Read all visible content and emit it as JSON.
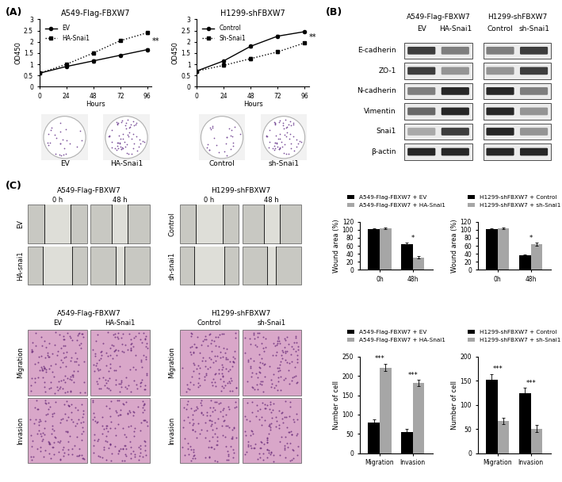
{
  "panel_labels": [
    "(A)",
    "(B)",
    "(C)"
  ],
  "chart_data": [
    {
      "type": "line",
      "title": "A549-Flag-FBXW7",
      "x_label": "Hours",
      "y_label": "OD450",
      "x": [
        0,
        24,
        48,
        72,
        96
      ],
      "xlim": [
        0,
        100
      ],
      "xticks": [
        0,
        24,
        48,
        72,
        96
      ],
      "ylim": [
        0,
        3
      ],
      "yticks": [
        0,
        0.5,
        1,
        1.5,
        2,
        2.5,
        3
      ],
      "legend": "upper left",
      "series": [
        {
          "name": "EV",
          "color": "#000000",
          "marker": "circle",
          "line_style": "solid",
          "values": [
            0.6,
            0.9,
            1.15,
            1.4,
            1.65
          ],
          "errors": [
            0.03,
            0.05,
            0.08,
            0.04,
            0.04
          ]
        },
        {
          "name": "HA-Snai1",
          "color": "#000000",
          "marker": "square",
          "line_style": "dotted",
          "values": [
            0.6,
            1.0,
            1.5,
            2.05,
            2.4
          ],
          "errors": [
            0.03,
            0.04,
            0.05,
            0.04,
            0.06
          ]
        }
      ],
      "annotations": [
        {
          "text": "**",
          "x": 96
        }
      ]
    },
    {
      "type": "line",
      "title": "H1299-shFBXW7",
      "x_label": "Hours",
      "y_label": "OD450",
      "x": [
        0,
        24,
        48,
        72,
        96
      ],
      "xlim": [
        0,
        100
      ],
      "xticks": [
        0,
        24,
        48,
        72,
        96
      ],
      "ylim": [
        0,
        3
      ],
      "yticks": [
        0,
        0.5,
        1,
        1.5,
        2,
        2.5,
        3
      ],
      "legend": "upper left",
      "series": [
        {
          "name": "Control",
          "color": "#000000",
          "marker": "circle",
          "line_style": "solid",
          "values": [
            0.7,
            1.15,
            1.8,
            2.25,
            2.45
          ],
          "errors": [
            0.03,
            0.04,
            0.04,
            0.04,
            0.04
          ]
        },
        {
          "name": "Sh-Snai1",
          "color": "#000000",
          "marker": "square",
          "line_style": "dotted",
          "values": [
            0.7,
            0.95,
            1.25,
            1.55,
            1.95
          ],
          "errors": [
            0.03,
            0.04,
            0.06,
            0.04,
            0.04
          ]
        }
      ],
      "annotations": [
        {
          "text": "**",
          "x": 96
        }
      ]
    },
    {
      "type": "bar",
      "y_label": "Wound area (%)",
      "categories": [
        "0h",
        "48h"
      ],
      "ylim": [
        0,
        120
      ],
      "yticks": [
        0,
        20,
        40,
        60,
        80,
        100,
        120
      ],
      "legend": "upper center",
      "series": [
        {
          "name": "A549-Flag-FBXW7 + EV",
          "color": "#000000",
          "values": [
            102,
            65
          ],
          "errors": [
            2,
            3
          ]
        },
        {
          "name": "A549-Flag-FBXW7 + HA-Snai1",
          "color": "#a6a6a6",
          "values": [
            103,
            31
          ],
          "errors": [
            2,
            3
          ]
        }
      ],
      "annotations": [
        {
          "text": "*",
          "category": "48h"
        }
      ]
    },
    {
      "type": "bar",
      "y_label": "Wound area (%)",
      "categories": [
        "0h",
        "48h"
      ],
      "ylim": [
        0,
        120
      ],
      "yticks": [
        0,
        20,
        40,
        60,
        80,
        100,
        120
      ],
      "legend": "upper center",
      "series": [
        {
          "name": "H1299-shFBXW7 + Control",
          "color": "#000000",
          "values": [
            101,
            36
          ],
          "errors": [
            2,
            3
          ]
        },
        {
          "name": "H1299-shFBXW7 + sh-Snai1",
          "color": "#a6a6a6",
          "values": [
            104,
            64
          ],
          "errors": [
            2,
            4
          ]
        }
      ],
      "annotations": [
        {
          "text": "*",
          "category": "48h"
        }
      ]
    },
    {
      "type": "bar",
      "y_label": "Number of cell",
      "categories": [
        "Migration",
        "Invasion"
      ],
      "ylim": [
        0,
        250
      ],
      "yticks": [
        0,
        50,
        100,
        150,
        200,
        250
      ],
      "legend": "upper center",
      "series": [
        {
          "name": "A549-Flag-FBXW7 + EV",
          "color": "#000000",
          "values": [
            80,
            55
          ],
          "errors": [
            7,
            8
          ]
        },
        {
          "name": "A549-Flag-FBXW7 + HA-Snai1",
          "color": "#a6a6a6",
          "values": [
            222,
            182
          ],
          "errors": [
            10,
            8
          ]
        }
      ],
      "annotations": [
        {
          "text": "***",
          "category": "Migration"
        },
        {
          "text": "***",
          "category": "Invasion"
        }
      ]
    },
    {
      "type": "bar",
      "y_label": "Number of cell",
      "categories": [
        "Migration",
        "Invasion"
      ],
      "ylim": [
        0,
        200
      ],
      "yticks": [
        0,
        50,
        100,
        150,
        200
      ],
      "legend": "upper center",
      "series": [
        {
          "name": "H1299-shFBXW7 + Control",
          "color": "#000000",
          "values": [
            152,
            125
          ],
          "errors": [
            12,
            10
          ]
        },
        {
          "name": "H1299-shFBXW7 + sh-Snai1",
          "color": "#a6a6a6",
          "values": [
            67,
            51
          ],
          "errors": [
            7,
            8
          ]
        }
      ],
      "annotations": [
        {
          "text": "***",
          "category": "Migration"
        },
        {
          "text": "***",
          "category": "Invasion"
        }
      ]
    }
  ],
  "colony_images": [
    [
      "EV",
      "HA-Snai1"
    ],
    [
      "Control",
      "sh-Snai1"
    ]
  ],
  "western_blots": {
    "rows": [
      "E-cadherin",
      "ZO-1",
      "N-cadherin",
      "Vimentin",
      "Snai1",
      "β-actin"
    ],
    "blots": [
      {
        "title": "A549-Flag-FBXW7",
        "lanes": [
          "EV",
          "HA-Snai1"
        ],
        "intensities": [
          [
            0.8,
            0.5
          ],
          [
            0.8,
            0.4
          ],
          [
            0.5,
            0.9
          ],
          [
            0.6,
            0.9
          ],
          [
            0.3,
            0.8
          ],
          [
            0.9,
            0.9
          ]
        ]
      },
      {
        "title": "H1299-shFBXW7",
        "lanes": [
          "Control",
          "sh-Snai1"
        ],
        "intensities": [
          [
            0.5,
            0.8
          ],
          [
            0.4,
            0.8
          ],
          [
            0.9,
            0.5
          ],
          [
            0.9,
            0.4
          ],
          [
            0.9,
            0.4
          ],
          [
            0.9,
            0.9
          ]
        ]
      }
    ]
  },
  "wound_images": [
    {
      "title": "A549-Flag-FBXW7",
      "columns": [
        "0 h",
        "48 h"
      ],
      "rows": [
        "EV",
        "HA-snai1"
      ]
    },
    {
      "title": "H1299-shFBXW7",
      "columns": [
        "0 h",
        "48 h"
      ],
      "rows": [
        "Control",
        "sh-snai1"
      ]
    }
  ],
  "transwell_images": [
    {
      "title": "A549-Flag-FBXW7",
      "columns": [
        "EV",
        "HA-Snai1"
      ],
      "rows": [
        "Migration",
        "Invasion"
      ]
    },
    {
      "title": "H1299-shFBXW7",
      "columns": [
        "Control",
        "sh-Snai1"
      ],
      "rows": [
        "Migration",
        "Invasion"
      ]
    }
  ]
}
